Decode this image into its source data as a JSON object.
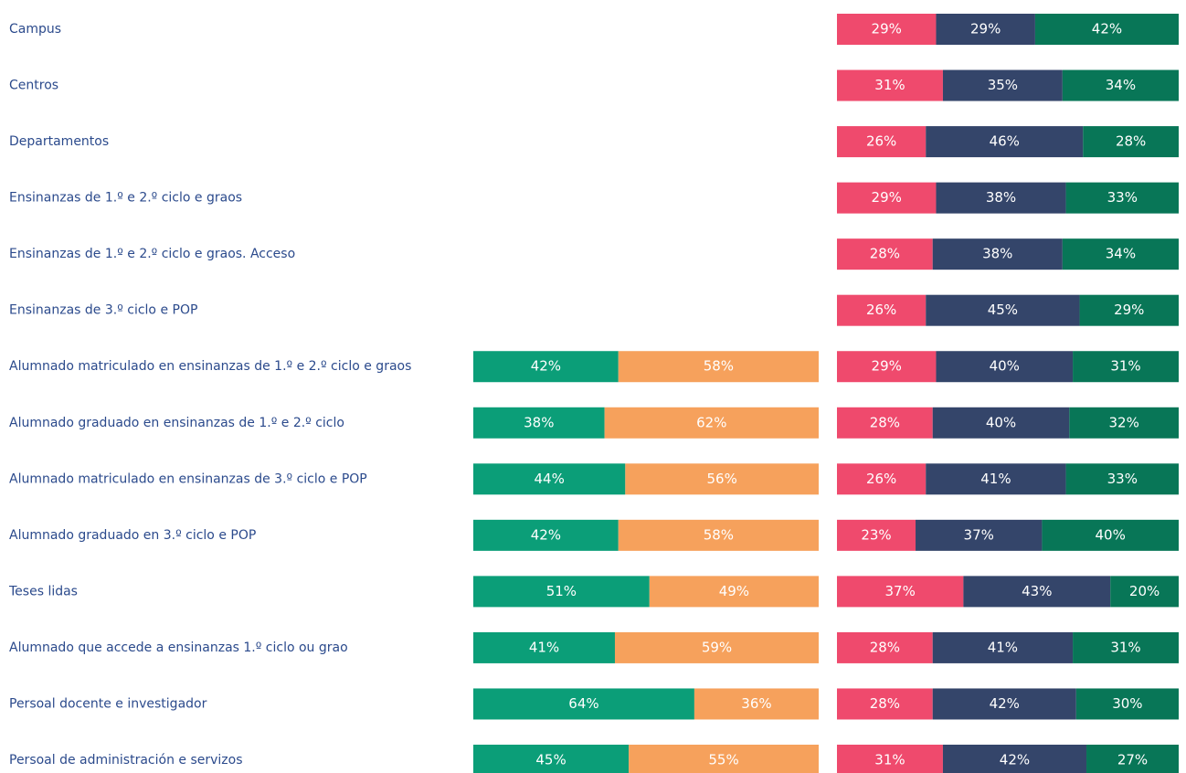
{
  "chart_data": [
    {
      "type": "stacked-bar",
      "orientation": "horizontal",
      "xlim": [
        0,
        100
      ],
      "categories": [
        "Campus",
        "Centros",
        "Departamentos",
        "Ensinanzas de 1.º e 2.º ciclo e graos",
        "Ensinanzas de 1.º e 2.º ciclo e graos. Acceso",
        "Ensinanzas de 3.º ciclo e POP",
        "Alumnado matriculado en ensinanzas de 1.º e 2.º ciclo e graos",
        "Alumnado graduado en ensinanzas de 1.º e 2.º ciclo",
        "Alumnado matriculado en ensinanzas de 3.º ciclo e POP",
        "Alumnado graduado en 3.º ciclo e POP",
        "Teses lidas",
        "Alumnado que accede a ensinanzas 1.º ciclo ou grao",
        "Persoal docente e investigador",
        "Persoal de administración e servizos"
      ],
      "series": [
        {
          "color": "#0b9e78",
          "values": [
            null,
            null,
            null,
            null,
            null,
            null,
            42,
            38,
            44,
            42,
            51,
            41,
            64,
            45
          ],
          "value_labels": [
            null,
            null,
            null,
            null,
            null,
            null,
            "42%",
            "38%",
            "44%",
            "42%",
            "51%",
            "41%",
            "64%",
            "45%"
          ]
        },
        {
          "color": "#f6a15c",
          "values": [
            null,
            null,
            null,
            null,
            null,
            null,
            58,
            62,
            56,
            58,
            49,
            59,
            36,
            55
          ],
          "value_labels": [
            null,
            null,
            null,
            null,
            null,
            null,
            "58%",
            "62%",
            "56%",
            "58%",
            "49%",
            "59%",
            "36%",
            "55%"
          ]
        }
      ]
    },
    {
      "type": "stacked-bar",
      "orientation": "horizontal",
      "xlim": [
        0,
        100
      ],
      "series": [
        {
          "color": "#ef4a6d",
          "values": [
            29,
            31,
            26,
            29,
            28,
            26,
            29,
            28,
            26,
            23,
            37,
            28,
            28,
            31
          ],
          "value_labels": [
            "29%",
            "31%",
            "26%",
            "29%",
            "28%",
            "26%",
            "29%",
            "28%",
            "26%",
            "23%",
            "37%",
            "28%",
            "28%",
            "31%"
          ]
        },
        {
          "color": "#34456a",
          "values": [
            29,
            35,
            46,
            38,
            38,
            45,
            40,
            40,
            41,
            37,
            43,
            41,
            42,
            42
          ],
          "value_labels": [
            "29%",
            "35%",
            "46%",
            "38%",
            "38%",
            "45%",
            "40%",
            "40%",
            "41%",
            "37%",
            "43%",
            "41%",
            "42%",
            "42%"
          ]
        },
        {
          "color": "#087657",
          "values": [
            42,
            34,
            28,
            33,
            34,
            29,
            31,
            32,
            33,
            40,
            20,
            31,
            30,
            27
          ],
          "value_labels": [
            "42%",
            "34%",
            "28%",
            "33%",
            "34%",
            "29%",
            "31%",
            "32%",
            "33%",
            "40%",
            "20%",
            "31%",
            "30%",
            "27%"
          ]
        }
      ]
    }
  ]
}
